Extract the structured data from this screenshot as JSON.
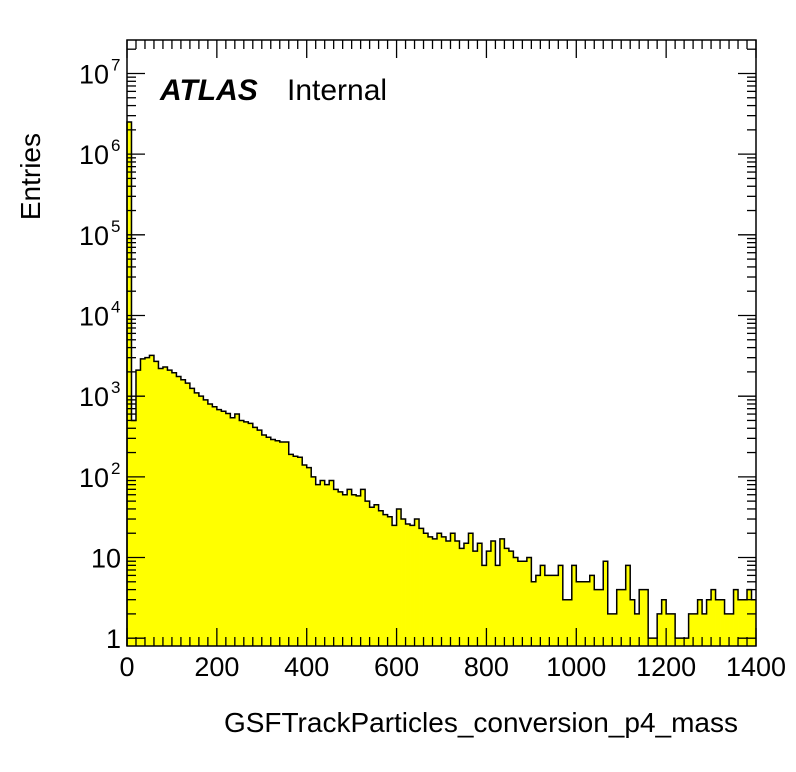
{
  "chart_data": {
    "type": "bar",
    "histogram": true,
    "title": "",
    "xlabel": "GSFTrackParticles_conversion_p4_mass",
    "ylabel": "Entries",
    "annotation": {
      "experiment": "ATLAS",
      "status": "Internal"
    },
    "xlim": [
      0,
      1400
    ],
    "ylim": [
      0.8,
      26000000
    ],
    "y_scale": "log",
    "bin_width": 10,
    "bin_start": 0,
    "fill_color": "#ffff00",
    "line_color": "#000000",
    "x_ticks": [
      "0",
      "200",
      "400",
      "600",
      "800",
      "1000",
      "1200",
      "1400"
    ],
    "y_ticks": [
      {
        "value": 1,
        "base": "1",
        "exp": ""
      },
      {
        "value": 10,
        "base": "10",
        "exp": ""
      },
      {
        "value": 100,
        "base": "10",
        "exp": "2"
      },
      {
        "value": 1000,
        "base": "10",
        "exp": "3"
      },
      {
        "value": 10000,
        "base": "10",
        "exp": "4"
      },
      {
        "value": 100000,
        "base": "10",
        "exp": "5"
      },
      {
        "value": 1000000,
        "base": "10",
        "exp": "6"
      },
      {
        "value": 10000000,
        "base": "10",
        "exp": "7"
      }
    ],
    "values": [
      2500000,
      500,
      2100,
      2900,
      3000,
      3200,
      2700,
      2200,
      2300,
      2100,
      1950,
      1750,
      1600,
      1450,
      1250,
      1100,
      1000,
      900,
      800,
      740,
      680,
      650,
      610,
      540,
      600,
      500,
      480,
      460,
      410,
      380,
      330,
      310,
      290,
      280,
      270,
      270,
      190,
      180,
      175,
      140,
      130,
      100,
      80,
      90,
      80,
      90,
      70,
      65,
      60,
      70,
      60,
      58,
      70,
      50,
      42,
      45,
      38,
      34,
      32,
      25,
      40,
      30,
      26,
      25,
      30,
      23,
      20,
      18,
      17,
      20,
      18,
      16,
      20,
      16,
      13,
      15,
      20,
      12,
      15,
      8,
      12,
      16,
      8,
      17,
      13,
      12,
      10,
      9,
      9,
      10,
      5,
      6,
      8,
      6,
      6,
      6,
      8,
      3,
      3,
      8,
      5,
      5,
      5,
      6,
      4,
      4,
      9,
      2,
      2,
      4,
      4,
      8,
      3,
      2,
      4,
      4,
      1,
      1,
      2,
      3,
      2,
      2,
      1,
      1,
      1,
      2,
      2,
      3,
      2,
      3,
      4,
      3,
      3,
      2,
      2,
      4,
      3,
      3,
      4,
      3
    ]
  }
}
